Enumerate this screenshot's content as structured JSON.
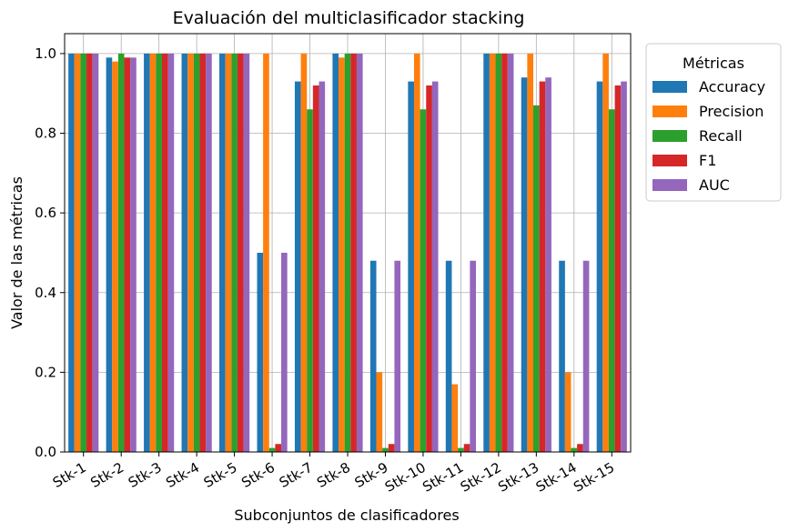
{
  "chart_data": {
    "type": "bar",
    "title": "Evaluación del multiclasificador stacking",
    "xlabel": "Subconjuntos de clasificadores",
    "ylabel": "Valor de las métricas",
    "ylim": [
      0,
      1.05
    ],
    "yticks": [
      "0.0",
      "0.2",
      "0.4",
      "0.6",
      "0.8",
      "1.0"
    ],
    "grid": true,
    "legend": {
      "title": "Métricas",
      "placement": "outside-top-right"
    },
    "categories": [
      "Stk-1",
      "Stk-2",
      "Stk-3",
      "Stk-4",
      "Stk-5",
      "Stk-6",
      "Stk-7",
      "Stk-8",
      "Stk-9",
      "Stk-10",
      "Stk-11",
      "Stk-12",
      "Stk-13",
      "Stk-14",
      "Stk-15"
    ],
    "series": [
      {
        "name": "Accuracy",
        "color": "#1f77b4",
        "values": [
          1.0,
          0.99,
          1.0,
          1.0,
          1.0,
          0.5,
          0.93,
          1.0,
          0.48,
          0.93,
          0.48,
          1.0,
          0.94,
          0.48,
          0.93
        ]
      },
      {
        "name": "Precision",
        "color": "#ff7f0e",
        "values": [
          1.0,
          0.98,
          1.0,
          1.0,
          1.0,
          1.0,
          1.0,
          0.99,
          0.2,
          1.0,
          0.17,
          1.0,
          1.0,
          0.2,
          1.0
        ]
      },
      {
        "name": "Recall",
        "color": "#2ca02c",
        "values": [
          1.0,
          1.0,
          1.0,
          1.0,
          1.0,
          0.01,
          0.86,
          1.0,
          0.01,
          0.86,
          0.01,
          1.0,
          0.87,
          0.01,
          0.86
        ]
      },
      {
        "name": "F1",
        "color": "#d62728",
        "values": [
          1.0,
          0.99,
          1.0,
          1.0,
          1.0,
          0.02,
          0.92,
          1.0,
          0.02,
          0.92,
          0.02,
          1.0,
          0.93,
          0.02,
          0.92
        ]
      },
      {
        "name": "AUC",
        "color": "#9467bd",
        "values": [
          1.0,
          0.99,
          1.0,
          1.0,
          1.0,
          0.5,
          0.93,
          1.0,
          0.48,
          0.93,
          0.48,
          1.0,
          0.94,
          0.48,
          0.93
        ]
      }
    ]
  }
}
